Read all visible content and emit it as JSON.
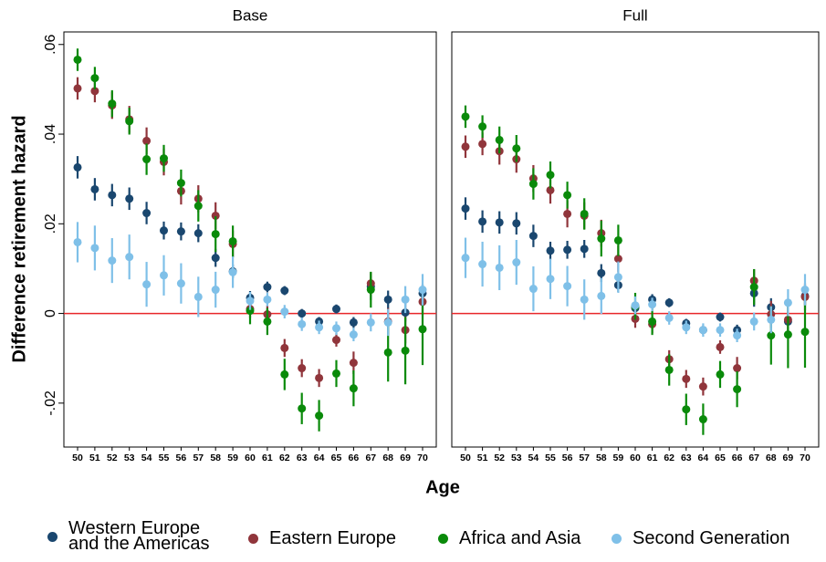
{
  "chart_data": [
    {
      "type": "dot-errorbar",
      "title": "Base",
      "ylabel": "Difference retirement hazard",
      "xlabel": "Age",
      "categories": [
        50,
        51,
        52,
        53,
        54,
        55,
        56,
        57,
        58,
        59,
        60,
        61,
        62,
        63,
        64,
        65,
        66,
        67,
        68,
        69,
        70
      ],
      "ylim": [
        -0.0298,
        0.0628
      ],
      "yticks": [
        {
          "value": 0.06,
          "label": ".06"
        },
        {
          "value": 0.04,
          "label": ".04"
        },
        {
          "value": 0.02,
          "label": ".02"
        },
        0,
        {
          "value": -0.02,
          "label": "-.02"
        }
      ],
      "reference_line": {
        "value": 0,
        "color": "#e8272a"
      },
      "series": [
        {
          "name": "Western Europe and the Americas",
          "color": "#1a476f",
          "values": [
            0.0326,
            0.0277,
            0.0264,
            0.0256,
            0.0224,
            0.0185,
            0.0183,
            0.0179,
            0.0124,
            0.0094,
            0.0035,
            0.0059,
            0.0051,
            0.0,
            -0.0018,
            0.001,
            -0.002,
            0.006,
            0.0031,
            0.0002,
            0.0045
          ],
          "errors": [
            0.0025,
            0.0025,
            0.0025,
            0.0025,
            0.0025,
            0.002,
            0.002,
            0.002,
            0.002,
            0.0015,
            0.0015,
            0.0012,
            0.001,
            0.001,
            0.001,
            0.001,
            0.0012,
            0.003,
            0.002,
            0.002,
            0.002
          ]
        },
        {
          "name": "Eastern Europe",
          "color": "#90353b",
          "values": [
            0.0502,
            0.0496,
            0.0464,
            0.0433,
            0.0385,
            0.0338,
            0.0273,
            0.0256,
            0.0218,
            0.0155,
            0.001,
            -0.0002,
            -0.0077,
            -0.0122,
            -0.0144,
            -0.0059,
            -0.011,
            0.0067,
            -0.0018,
            -0.0037,
            0.0026
          ],
          "errors": [
            0.0025,
            0.0025,
            0.003,
            0.003,
            0.003,
            0.003,
            0.003,
            0.003,
            0.003,
            0.003,
            0.002,
            0.002,
            0.002,
            0.002,
            0.002,
            0.0015,
            0.0025,
            0.0025,
            0.003,
            0.003,
            0.003
          ]
        },
        {
          "name": "Africa and Asia",
          "color": "#0a8a0a",
          "values": [
            0.0566,
            0.0525,
            0.0468,
            0.0429,
            0.0344,
            0.0346,
            0.0291,
            0.024,
            0.0177,
            0.0161,
            0.0006,
            -0.0018,
            -0.0136,
            -0.0212,
            -0.0228,
            -0.0134,
            -0.0167,
            0.0053,
            -0.0087,
            -0.0083,
            -0.0035
          ],
          "errors": [
            0.0025,
            0.0025,
            0.003,
            0.003,
            0.0035,
            0.003,
            0.003,
            0.0035,
            0.004,
            0.0035,
            0.003,
            0.003,
            0.0035,
            0.0035,
            0.0035,
            0.003,
            0.004,
            0.004,
            0.0065,
            0.0075,
            0.008
          ]
        },
        {
          "name": "Second Generation",
          "color": "#7fc0e8",
          "values": [
            0.0159,
            0.0146,
            0.0118,
            0.0126,
            0.0065,
            0.0085,
            0.0067,
            0.0037,
            0.0053,
            0.0092,
            0.0028,
            0.0031,
            0.0004,
            -0.0024,
            -0.0031,
            -0.0033,
            -0.0047,
            -0.002,
            -0.002,
            0.0031,
            0.0053
          ],
          "errors": [
            0.0045,
            0.005,
            0.005,
            0.005,
            0.005,
            0.0045,
            0.0045,
            0.0045,
            0.004,
            0.0035,
            0.002,
            0.0015,
            0.0015,
            0.0015,
            0.0015,
            0.0015,
            0.0015,
            0.002,
            0.003,
            0.003,
            0.0035
          ]
        }
      ]
    },
    {
      "type": "dot-errorbar",
      "title": "Full",
      "categories": [
        50,
        51,
        52,
        53,
        54,
        55,
        56,
        57,
        58,
        59,
        60,
        61,
        62,
        63,
        64,
        65,
        66,
        67,
        68,
        69,
        70
      ],
      "ylim": [
        -0.0298,
        0.0628
      ],
      "reference_line": {
        "value": 0,
        "color": "#e8272a"
      },
      "series": [
        {
          "color": "#1a476f",
          "values": [
            0.0234,
            0.0205,
            0.0203,
            0.0201,
            0.0173,
            0.014,
            0.0142,
            0.0144,
            0.009,
            0.0063,
            0.0012,
            0.0031,
            0.0024,
            -0.0022,
            -0.0037,
            -0.0008,
            -0.0037,
            0.0045,
            0.0014,
            -0.0018,
            0.0039
          ],
          "errors": [
            0.0025,
            0.0025,
            0.0025,
            0.0025,
            0.0025,
            0.002,
            0.002,
            0.002,
            0.002,
            0.0015,
            0.0015,
            0.0012,
            0.001,
            0.001,
            0.001,
            0.001,
            0.0012,
            0.003,
            0.002,
            0.002,
            0.002
          ]
        },
        {
          "color": "#90353b",
          "values": [
            0.0372,
            0.0378,
            0.0362,
            0.0344,
            0.0301,
            0.0275,
            0.0222,
            0.0218,
            0.0179,
            0.0122,
            -0.0012,
            -0.0024,
            -0.0102,
            -0.0146,
            -0.0163,
            -0.0075,
            -0.0122,
            0.0073,
            -0.0002,
            -0.0014,
            0.0037
          ],
          "errors": [
            0.0025,
            0.0025,
            0.003,
            0.003,
            0.003,
            0.003,
            0.003,
            0.003,
            0.003,
            0.003,
            0.002,
            0.002,
            0.002,
            0.002,
            0.002,
            0.0015,
            0.0025,
            0.0025,
            0.003,
            0.003,
            0.003
          ]
        },
        {
          "color": "#0a8a0a",
          "values": [
            0.0439,
            0.0417,
            0.0387,
            0.0368,
            0.0289,
            0.0309,
            0.0264,
            0.0222,
            0.0167,
            0.0163,
            0.0016,
            -0.0018,
            -0.0126,
            -0.0214,
            -0.0236,
            -0.0136,
            -0.0169,
            0.0059,
            -0.0049,
            -0.0047,
            -0.0041
          ],
          "errors": [
            0.0025,
            0.0025,
            0.003,
            0.003,
            0.0035,
            0.003,
            0.003,
            0.0035,
            0.004,
            0.0035,
            0.003,
            0.003,
            0.0035,
            0.0035,
            0.0035,
            0.003,
            0.004,
            0.004,
            0.0065,
            0.0075,
            0.008
          ]
        },
        {
          "color": "#7fc0e8",
          "values": [
            0.0124,
            0.011,
            0.0102,
            0.0114,
            0.0055,
            0.0077,
            0.0061,
            0.0031,
            0.0039,
            0.0081,
            0.0018,
            0.002,
            -0.001,
            -0.0031,
            -0.0037,
            -0.0037,
            -0.0049,
            -0.0018,
            -0.0014,
            0.0024,
            0.0053
          ],
          "errors": [
            0.0045,
            0.005,
            0.005,
            0.005,
            0.005,
            0.0045,
            0.0045,
            0.0045,
            0.004,
            0.0035,
            0.002,
            0.0015,
            0.0015,
            0.0015,
            0.0015,
            0.0015,
            0.0015,
            0.002,
            0.003,
            0.003,
            0.0035
          ]
        }
      ]
    }
  ]
}
